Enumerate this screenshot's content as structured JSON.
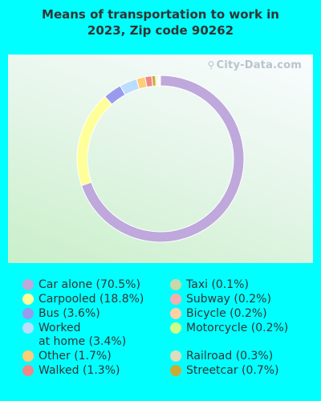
{
  "title_line1": "Means of transportation to work in",
  "title_line2": "2023, Zip code 90262",
  "watermark": "City-Data.com",
  "chart_data": {
    "type": "pie",
    "title": "Means of transportation to work in 2023, Zip code 90262",
    "donut": true,
    "legend_placement": "bottom",
    "series": [
      {
        "name": "Car alone",
        "value": 70.5,
        "color": "#bfa8dc",
        "label": "Car alone (70.5%)"
      },
      {
        "name": "Carpooled",
        "value": 18.8,
        "color": "#ffff99",
        "label": "Carpooled (18.8%)"
      },
      {
        "name": "Bus",
        "value": 3.6,
        "color": "#9999ee",
        "label": "Bus (3.6%)"
      },
      {
        "name": "Worked at home",
        "value": 3.4,
        "color": "#bbddff",
        "label": "Worked\nat home (3.4%)"
      },
      {
        "name": "Other",
        "value": 1.7,
        "color": "#ffcc77",
        "label": "Other (1.7%)"
      },
      {
        "name": "Walked",
        "value": 1.3,
        "color": "#ee8888",
        "label": "Walked (1.3%)"
      },
      {
        "name": "Taxi",
        "value": 0.1,
        "color": "#c8d8a8",
        "label": "Taxi (0.1%)"
      },
      {
        "name": "Subway",
        "value": 0.2,
        "color": "#f0b0b0",
        "label": "Subway (0.2%)"
      },
      {
        "name": "Bicycle",
        "value": 0.2,
        "color": "#ffd0a8",
        "label": "Bicycle (0.2%)"
      },
      {
        "name": "Motorcycle",
        "value": 0.2,
        "color": "#ccff88",
        "label": "Motorcycle (0.2%)"
      },
      {
        "name": "Railroad",
        "value": 0.3,
        "color": "#dddcbb",
        "label": "Railroad (0.3%)"
      },
      {
        "name": "Streetcar",
        "value": 0.7,
        "color": "#ccaa33",
        "label": "Streetcar (0.7%)"
      }
    ],
    "draw_order": [
      "Car alone",
      "Carpooled",
      "Bus",
      "Worked at home",
      "Other",
      "Walked",
      "Streetcar",
      "Railroad",
      "Taxi",
      "Subway",
      "Bicycle",
      "Motorcycle"
    ]
  }
}
